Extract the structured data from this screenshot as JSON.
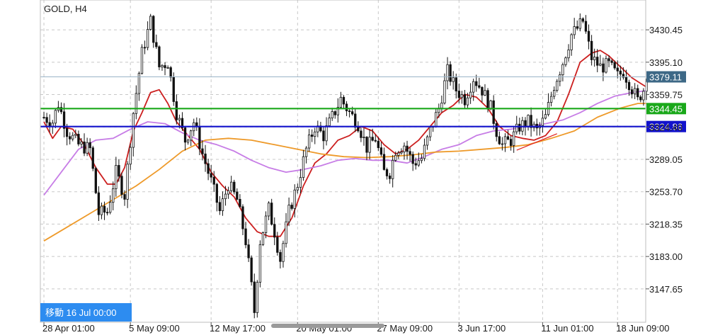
{
  "header": {
    "symbol_label": "GOLD, H4"
  },
  "navigation": {
    "goto_label": "移動 16 Jul 00:00"
  },
  "colors": {
    "bull": "#ffffff",
    "bear": "#111111",
    "wick": "#111111",
    "ma_fast": "#cc1f1f",
    "ma_mid": "#c77de6",
    "ma_slow": "#ee9a2a",
    "current_line": "#9ab4c8",
    "support_green": "#1aa81a",
    "support_blue": "#1212cc",
    "badge_current": "#3d6886",
    "badge_green": "#1aa81a",
    "badge_blue": "#1212cc",
    "goto_bg": "#2d8cf0",
    "trendline": "#e02020"
  },
  "chart_data": {
    "type": "candlestick",
    "title": "GOLD, H4",
    "ylim": [
      3111.2,
      3463.0
    ],
    "grid": true,
    "y_ticks": [
      "3430.45",
      "3395.10",
      "3359.75",
      "3324.40",
      "3289.05",
      "3253.70",
      "3218.35",
      "3183.00",
      "3147.65"
    ],
    "x_ticks": [
      {
        "label": "28 Apr 01:00",
        "index": 0
      },
      {
        "label": "5 May 09:00",
        "index": 30
      },
      {
        "label": "12 May 17:00",
        "index": 58
      },
      {
        "label": "20 May 01:00",
        "index": 88
      },
      {
        "label": "27 May 09:00",
        "index": 116
      },
      {
        "label": "3 Jun 17:00",
        "index": 144
      },
      {
        "label": "11 Jun 01:00",
        "index": 173
      },
      {
        "label": "18 Jun 09:00",
        "index": 199
      }
    ],
    "price_levels": [
      {
        "name": "current",
        "value": 3379.11,
        "label": "3379.11"
      },
      {
        "name": "support-green",
        "value": 3344.45,
        "label": "3344.45"
      },
      {
        "name": "support-blue",
        "value": 3324.86,
        "label": "3324.86"
      }
    ],
    "anchors": [
      [
        0,
        3335
      ],
      [
        3,
        3330
      ],
      [
        5,
        3350
      ],
      [
        8,
        3320
      ],
      [
        12,
        3305
      ],
      [
        16,
        3300
      ],
      [
        19,
        3230
      ],
      [
        22,
        3232
      ],
      [
        25,
        3275
      ],
      [
        28,
        3250
      ],
      [
        31,
        3340
      ],
      [
        34,
        3405
      ],
      [
        37,
        3440
      ],
      [
        40,
        3390
      ],
      [
        43,
        3395
      ],
      [
        46,
        3340
      ],
      [
        49,
        3310
      ],
      [
        52,
        3330
      ],
      [
        55,
        3295
      ],
      [
        58,
        3265
      ],
      [
        61,
        3232
      ],
      [
        64,
        3262
      ],
      [
        67,
        3245
      ],
      [
        70,
        3200
      ],
      [
        72,
        3150
      ],
      [
        73,
        3123
      ],
      [
        75,
        3200
      ],
      [
        78,
        3235
      ],
      [
        80,
        3210
      ],
      [
        82,
        3180
      ],
      [
        85,
        3232
      ],
      [
        88,
        3262
      ],
      [
        91,
        3300
      ],
      [
        94,
        3325
      ],
      [
        97,
        3315
      ],
      [
        100,
        3335
      ],
      [
        103,
        3355
      ],
      [
        106,
        3340
      ],
      [
        109,
        3328
      ],
      [
        112,
        3302
      ],
      [
        115,
        3312
      ],
      [
        118,
        3275
      ],
      [
        120,
        3275
      ],
      [
        122,
        3300
      ],
      [
        125,
        3305
      ],
      [
        128,
        3285
      ],
      [
        131,
        3290
      ],
      [
        134,
        3320
      ],
      [
        137,
        3345
      ],
      [
        140,
        3385
      ],
      [
        143,
        3365
      ],
      [
        146,
        3355
      ],
      [
        149,
        3378
      ],
      [
        152,
        3365
      ],
      [
        155,
        3345
      ],
      [
        157,
        3320
      ],
      [
        159,
        3305
      ],
      [
        162,
        3310
      ],
      [
        165,
        3325
      ],
      [
        168,
        3330
      ],
      [
        171,
        3320
      ],
      [
        174,
        3335
      ],
      [
        177,
        3370
      ],
      [
        180,
        3395
      ],
      [
        183,
        3425
      ],
      [
        185,
        3432
      ],
      [
        187,
        3440
      ],
      [
        190,
        3400
      ],
      [
        193,
        3390
      ],
      [
        196,
        3392
      ],
      [
        199,
        3380
      ],
      [
        201,
        3385
      ],
      [
        203,
        3373
      ],
      [
        205,
        3360
      ],
      [
        206,
        3353
      ],
      [
        207,
        3360
      ],
      [
        208,
        3365
      ],
      [
        209,
        3382
      ]
    ],
    "series": [
      {
        "name": "",
        "kind": "ma",
        "points": [
          [
            0,
            3330
          ],
          [
            3,
            3312
          ],
          [
            6,
            3325
          ],
          [
            10,
            3322
          ],
          [
            14,
            3305
          ],
          [
            18,
            3280
          ],
          [
            22,
            3262
          ],
          [
            25,
            3262
          ],
          [
            28,
            3280
          ],
          [
            31,
            3320
          ],
          [
            34,
            3340
          ],
          [
            37,
            3362
          ],
          [
            40,
            3365
          ],
          [
            43,
            3350
          ],
          [
            46,
            3330
          ],
          [
            50,
            3315
          ],
          [
            54,
            3300
          ],
          [
            58,
            3275
          ],
          [
            62,
            3260
          ],
          [
            66,
            3248
          ],
          [
            70,
            3225
          ],
          [
            74,
            3210
          ],
          [
            78,
            3205
          ],
          [
            82,
            3205
          ],
          [
            86,
            3225
          ],
          [
            90,
            3260
          ],
          [
            94,
            3285
          ],
          [
            98,
            3295
          ],
          [
            102,
            3310
          ],
          [
            106,
            3315
          ],
          [
            110,
            3325
          ],
          [
            114,
            3320
          ],
          [
            118,
            3305
          ],
          [
            122,
            3295
          ],
          [
            126,
            3300
          ],
          [
            130,
            3310
          ],
          [
            134,
            3325
          ],
          [
            138,
            3340
          ],
          [
            142,
            3348
          ],
          [
            146,
            3360
          ],
          [
            150,
            3357
          ],
          [
            154,
            3345
          ],
          [
            158,
            3325
          ],
          [
            162,
            3315
          ],
          [
            166,
            3312
          ],
          [
            170,
            3310
          ],
          [
            174,
            3315
          ],
          [
            178,
            3330
          ],
          [
            182,
            3360
          ],
          [
            186,
            3395
          ],
          [
            190,
            3405
          ],
          [
            193,
            3408
          ],
          [
            196,
            3402
          ],
          [
            200,
            3390
          ],
          [
            204,
            3378
          ],
          [
            207,
            3372
          ],
          [
            209,
            3368
          ]
        ]
      },
      {
        "name": "",
        "kind": "ma",
        "points": [
          [
            0,
            3250
          ],
          [
            6,
            3275
          ],
          [
            12,
            3300
          ],
          [
            18,
            3310
          ],
          [
            24,
            3312
          ],
          [
            30,
            3322
          ],
          [
            36,
            3330
          ],
          [
            42,
            3328
          ],
          [
            48,
            3318
          ],
          [
            54,
            3310
          ],
          [
            60,
            3305
          ],
          [
            66,
            3298
          ],
          [
            72,
            3288
          ],
          [
            78,
            3280
          ],
          [
            84,
            3275
          ],
          [
            90,
            3278
          ],
          [
            96,
            3282
          ],
          [
            102,
            3288
          ],
          [
            108,
            3290
          ],
          [
            114,
            3288
          ],
          [
            120,
            3288
          ],
          [
            126,
            3285
          ],
          [
            132,
            3292
          ],
          [
            138,
            3300
          ],
          [
            144,
            3305
          ],
          [
            150,
            3315
          ],
          [
            156,
            3320
          ],
          [
            162,
            3322
          ],
          [
            168,
            3325
          ],
          [
            174,
            3328
          ],
          [
            180,
            3332
          ],
          [
            186,
            3340
          ],
          [
            192,
            3350
          ],
          [
            198,
            3358
          ],
          [
            204,
            3362
          ],
          [
            209,
            3364
          ]
        ]
      },
      {
        "name": "",
        "kind": "ma",
        "points": [
          [
            0,
            3200
          ],
          [
            8,
            3215
          ],
          [
            16,
            3230
          ],
          [
            24,
            3245
          ],
          [
            32,
            3260
          ],
          [
            40,
            3278
          ],
          [
            48,
            3298
          ],
          [
            56,
            3310
          ],
          [
            64,
            3312
          ],
          [
            72,
            3310
          ],
          [
            80,
            3305
          ],
          [
            88,
            3300
          ],
          [
            96,
            3295
          ],
          [
            104,
            3292
          ],
          [
            112,
            3291
          ],
          [
            120,
            3292
          ],
          [
            128,
            3294
          ],
          [
            136,
            3297
          ],
          [
            144,
            3298
          ],
          [
            152,
            3300
          ],
          [
            160,
            3302
          ],
          [
            168,
            3305
          ],
          [
            176,
            3312
          ],
          [
            184,
            3320
          ],
          [
            192,
            3335
          ],
          [
            200,
            3345
          ],
          [
            206,
            3350
          ],
          [
            209,
            3350
          ]
        ]
      }
    ],
    "trendline": {
      "from": [
        164,
        3299
      ],
      "to": [
        178,
        3317
      ]
    }
  }
}
